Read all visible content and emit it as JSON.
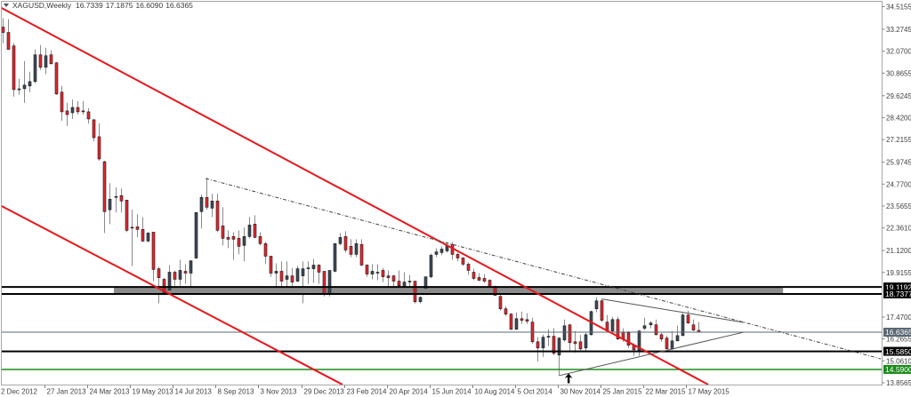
{
  "header": {
    "symbol": "XAGUSD,Weekly",
    "ohlc": {
      "open": "16.7339",
      "high": "17.1875",
      "low": "16.6090",
      "close": "16.6365"
    }
  },
  "icons": {
    "menu": "triangle-down-icon",
    "marker": "up-arrow-icon"
  },
  "colors": {
    "bull": "#3c4a58",
    "bear": "#e3262e",
    "wick": "#8a8a8a",
    "outline": "#1a1a1a",
    "channel": "#e8161b",
    "trend_dashed": "#444444",
    "triangle": "#555555",
    "band": "#8c8c8c",
    "level_black": "#000000",
    "current_price": "#5a6773",
    "support_green": "#1c8c1c",
    "frame": "#a8a8a8",
    "axis_text": "#404040"
  },
  "chart_data": {
    "type": "candlestick",
    "title": "XAGUSD,Weekly",
    "xlabel": "",
    "ylabel": "",
    "ylim": [
      13.8565,
      34.5155
    ],
    "grid": false,
    "last_bar": {
      "open": 16.7339,
      "high": 17.1875,
      "low": 16.609,
      "close": 16.6365
    },
    "y_ticks": [
      "34.5155",
      "33.2745",
      "32.0700",
      "30.8655",
      "29.6245",
      "28.4200",
      "27.2155",
      "25.9745",
      "24.7700",
      "23.5655",
      "22.3610",
      "21.1200",
      "19.9155",
      "17.4700",
      "16.2655",
      "15.0610",
      "13.8565"
    ],
    "x_ticks": [
      {
        "label": "2 Dec 2012",
        "bar": 0
      },
      {
        "label": "27 Jan 2013",
        "bar": 8
      },
      {
        "label": "24 Mar 2013",
        "bar": 16
      },
      {
        "label": "19 May 2013",
        "bar": 24
      },
      {
        "label": "14 Jul 2013",
        "bar": 32
      },
      {
        "label": "8 Sep 2013",
        "bar": 40
      },
      {
        "label": "3 Nov 2013",
        "bar": 48
      },
      {
        "label": "29 Dec 2013",
        "bar": 56
      },
      {
        "label": "23 Feb 2014",
        "bar": 64
      },
      {
        "label": "20 Apr 2014",
        "bar": 72
      },
      {
        "label": "15 Jun 2014",
        "bar": 80
      },
      {
        "label": "10 Aug 2014",
        "bar": 88
      },
      {
        "label": "5 Oct 2014",
        "bar": 96
      },
      {
        "label": "30 Nov 2014",
        "bar": 104
      },
      {
        "label": "25 Jan 2015",
        "bar": 112
      },
      {
        "label": "22 Mar 2015",
        "bar": 120
      },
      {
        "label": "17 May 2015",
        "bar": 128
      }
    ],
    "candles_format": [
      "open",
      "high",
      "low",
      "close"
    ],
    "candles": [
      [
        33.39,
        33.88,
        32.51,
        33.1
      ],
      [
        33.1,
        33.83,
        32.51,
        32.17
      ],
      [
        32.36,
        32.51,
        29.57,
        29.96
      ],
      [
        29.98,
        30.55,
        29.67,
        30.0
      ],
      [
        30.01,
        31.53,
        29.23,
        30.21
      ],
      [
        30.16,
        30.94,
        29.82,
        30.4
      ],
      [
        30.4,
        32.17,
        30.31,
        31.87
      ],
      [
        31.87,
        32.41,
        31.04,
        31.19
      ],
      [
        31.19,
        32.26,
        30.8,
        31.82
      ],
      [
        31.87,
        32.12,
        31.33,
        31.38
      ],
      [
        31.43,
        31.48,
        29.67,
        29.72
      ],
      [
        29.82,
        30.16,
        28.25,
        28.74
      ],
      [
        28.79,
        29.23,
        27.96,
        28.59
      ],
      [
        28.69,
        29.42,
        28.35,
        28.98
      ],
      [
        28.98,
        29.33,
        28.59,
        28.74
      ],
      [
        28.79,
        29.33,
        28.59,
        28.74
      ],
      [
        28.74,
        28.94,
        28.1,
        28.35
      ],
      [
        28.3,
        28.35,
        27.12,
        27.32
      ],
      [
        27.37,
        28.1,
        26.05,
        26.15
      ],
      [
        26.0,
        26.05,
        22.08,
        23.26
      ],
      [
        23.36,
        24.82,
        22.57,
        23.94
      ],
      [
        24.07,
        24.58,
        23.21,
        24.09
      ],
      [
        24.14,
        24.53,
        23.21,
        23.84
      ],
      [
        23.89,
        23.89,
        22.13,
        22.23
      ],
      [
        22.4,
        23.36,
        20.27,
        22.36
      ],
      [
        22.42,
        23.11,
        21.84,
        22.28
      ],
      [
        22.28,
        22.96,
        21.59,
        21.64
      ],
      [
        21.64,
        22.13,
        21.59,
        22.08
      ],
      [
        22.13,
        22.13,
        19.44,
        20.08
      ],
      [
        20.12,
        20.22,
        18.22,
        19.63
      ],
      [
        19.54,
        19.63,
        18.7,
        18.8
      ],
      [
        18.95,
        20.32,
        18.9,
        19.93
      ],
      [
        19.93,
        20.03,
        19.19,
        19.54
      ],
      [
        19.54,
        20.61,
        19.19,
        20.03
      ],
      [
        19.98,
        20.37,
        19.29,
        19.88
      ],
      [
        19.88,
        20.56,
        19.15,
        20.56
      ],
      [
        20.71,
        23.21,
        20.66,
        23.21
      ],
      [
        23.26,
        24.19,
        22.33,
        24.04
      ],
      [
        24.04,
        25.12,
        23.36,
        23.5
      ],
      [
        23.45,
        24.24,
        22.96,
        23.84
      ],
      [
        23.84,
        24.24,
        22.13,
        22.23
      ],
      [
        22.47,
        23.5,
        21.4,
        21.79
      ],
      [
        21.84,
        22.23,
        21.25,
        21.74
      ],
      [
        21.89,
        22.13,
        20.61,
        21.74
      ],
      [
        21.79,
        22.23,
        20.91,
        21.35
      ],
      [
        21.4,
        22.38,
        20.52,
        21.89
      ],
      [
        21.89,
        22.96,
        21.79,
        22.52
      ],
      [
        22.57,
        23.06,
        21.79,
        21.84
      ],
      [
        21.89,
        22.13,
        21.4,
        21.5
      ],
      [
        21.5,
        21.59,
        20.37,
        20.81
      ],
      [
        20.81,
        20.81,
        19.68,
        19.88
      ],
      [
        19.88,
        20.42,
        18.95,
        19.98
      ],
      [
        19.98,
        20.52,
        18.8,
        19.44
      ],
      [
        19.54,
        20.52,
        19.15,
        19.73
      ],
      [
        19.73,
        20.17,
        19.15,
        19.39
      ],
      [
        19.44,
        20.27,
        19.39,
        20.12
      ],
      [
        19.73,
        20.52,
        18.22,
        20.12
      ],
      [
        20.15,
        20.52,
        19.29,
        20.17
      ],
      [
        20.12,
        20.66,
        19.34,
        20.32
      ],
      [
        20.32,
        20.37,
        19.29,
        19.93
      ],
      [
        19.98,
        19.98,
        18.6,
        18.7
      ],
      [
        18.7,
        20.03,
        18.6,
        20.03
      ],
      [
        19.98,
        21.5,
        19.93,
        21.5
      ],
      [
        21.5,
        22.08,
        21.4,
        21.84
      ],
      [
        21.89,
        22.18,
        21.01,
        21.15
      ],
      [
        21.35,
        21.74,
        20.76,
        20.91
      ],
      [
        20.91,
        21.74,
        20.76,
        21.5
      ],
      [
        21.45,
        21.74,
        20.27,
        20.32
      ],
      [
        20.32,
        20.37,
        19.68,
        19.83
      ],
      [
        19.83,
        20.37,
        19.54,
        19.98
      ],
      [
        19.92,
        20.37,
        19.49,
        19.93
      ],
      [
        20.03,
        20.17,
        19.39,
        19.68
      ],
      [
        19.73,
        20.03,
        18.7,
        19.63
      ],
      [
        19.73,
        19.78,
        18.8,
        19.44
      ],
      [
        19.44,
        20.03,
        19.05,
        19.19
      ],
      [
        19.15,
        19.93,
        19.05,
        19.39
      ],
      [
        19.42,
        19.78,
        19.05,
        19.44
      ],
      [
        19.44,
        19.44,
        18.21,
        18.31
      ],
      [
        18.31,
        18.6,
        18.21,
        18.55
      ],
      [
        19.05,
        19.68,
        18.95,
        19.68
      ],
      [
        19.68,
        20.96,
        19.59,
        20.86
      ],
      [
        20.91,
        21.25,
        20.76,
        21.05
      ],
      [
        21.01,
        21.35,
        20.86,
        21.2
      ],
      [
        21.1,
        21.59,
        21.01,
        21.4
      ],
      [
        21.45,
        21.59,
        20.61,
        20.91
      ],
      [
        20.91,
        21.01,
        20.52,
        20.71
      ],
      [
        20.71,
        20.76,
        20.27,
        20.37
      ],
      [
        20.37,
        20.47,
        19.78,
        20.03
      ],
      [
        19.93,
        20.12,
        19.49,
        19.59
      ],
      [
        19.64,
        19.88,
        19.44,
        19.49
      ],
      [
        19.59,
        19.83,
        19.34,
        19.44
      ],
      [
        19.49,
        19.54,
        19.1,
        19.15
      ],
      [
        19.15,
        19.19,
        18.65,
        18.66
      ],
      [
        18.6,
        18.9,
        17.82,
        17.92
      ],
      [
        17.92,
        18.07,
        17.53,
        17.63
      ],
      [
        17.63,
        17.68,
        16.75,
        16.8
      ],
      [
        16.8,
        17.72,
        16.75,
        17.38
      ],
      [
        17.38,
        17.77,
        17.09,
        17.29
      ],
      [
        17.33,
        17.68,
        17.09,
        17.24
      ],
      [
        17.19,
        17.43,
        16.01,
        16.11
      ],
      [
        16.11,
        16.36,
        15.03,
        15.77
      ],
      [
        15.77,
        16.5,
        15.28,
        16.36
      ],
      [
        16.38,
        16.8,
        15.87,
        16.41
      ],
      [
        16.41,
        16.85,
        15.38,
        15.47
      ],
      [
        15.38,
        16.36,
        14.25,
        16.31
      ],
      [
        16.21,
        17.33,
        16.11,
        16.99
      ],
      [
        17.04,
        17.09,
        15.57,
        16.06
      ],
      [
        16.11,
        16.7,
        15.52,
        16.01
      ],
      [
        16.11,
        16.5,
        15.62,
        15.72
      ],
      [
        15.77,
        16.6,
        15.57,
        16.5
      ],
      [
        16.5,
        17.82,
        16.45,
        17.77
      ],
      [
        17.92,
        18.55,
        17.72,
        18.36
      ],
      [
        18.36,
        18.46,
        17.19,
        17.29
      ],
      [
        17.19,
        17.58,
        16.65,
        16.7
      ],
      [
        16.7,
        17.48,
        16.65,
        17.33
      ],
      [
        17.33,
        17.48,
        16.21,
        16.26
      ],
      [
        16.65,
        16.85,
        16.11,
        16.26
      ],
      [
        16.6,
        16.7,
        15.77,
        15.92
      ],
      [
        15.92,
        16.01,
        15.33,
        15.67
      ],
      [
        15.62,
        16.75,
        15.33,
        16.7
      ],
      [
        16.85,
        17.43,
        16.75,
        16.99
      ],
      [
        17.04,
        17.24,
        16.85,
        17.14
      ],
      [
        17.04,
        17.33,
        16.45,
        16.5
      ],
      [
        16.5,
        16.6,
        16.11,
        16.26
      ],
      [
        16.31,
        16.45,
        15.7,
        15.72
      ],
      [
        15.72,
        16.7,
        15.67,
        16.16
      ],
      [
        16.16,
        16.99,
        16.14,
        16.45
      ],
      [
        16.45,
        17.68,
        16.41,
        17.58
      ],
      [
        17.58,
        17.82,
        17.09,
        17.14
      ],
      [
        17.04,
        17.33,
        16.7,
        16.75
      ],
      [
        16.7339,
        17.1875,
        16.609,
        16.6365
      ]
    ],
    "levels": [
      {
        "price": 19.1192,
        "label": "19.1192",
        "style": "level_black",
        "width": 2,
        "label_bg": "level_black"
      },
      {
        "price": 18.7377,
        "label": "18.7377",
        "style": "level_black",
        "width": 2,
        "label_bg": "level_black"
      },
      {
        "price": 16.6365,
        "label": "16.6365",
        "style": "current_price",
        "width": 1,
        "label_bg": "current_price"
      },
      {
        "price": 15.585,
        "label": "15.5850",
        "style": "level_black",
        "width": 2,
        "label_bg": "level_black"
      },
      {
        "price": 14.59,
        "label": "14.5900",
        "style": "support_green",
        "width": 1.5,
        "label_bg": "support_green"
      }
    ],
    "band": {
      "bar_from": 20.75,
      "bar_to": 145.9,
      "price_top": 19.1192,
      "price_bottom": 18.7377
    },
    "trendlines": [
      {
        "name": "upper-channel-line",
        "color": "channel",
        "width": 2,
        "dash": "",
        "from": {
          "bar": -0.55,
          "price": 34.49
        },
        "to": {
          "bar": 131.9,
          "price": 13.76
        }
      },
      {
        "name": "lower-channel-line",
        "color": "channel",
        "width": 2,
        "dash": "",
        "from": {
          "bar": -0.55,
          "price": 23.61
        },
        "to": {
          "bar": 63.5,
          "price": 13.76
        }
      },
      {
        "name": "dashed-resistance-line",
        "color": "trend_dashed",
        "width": 1,
        "dash": "4,2,1,2",
        "from": {
          "bar": 37.9,
          "price": 25.08
        },
        "to": {
          "bar": 164.2,
          "price": 15.17
        }
      },
      {
        "name": "triangle-upper-line",
        "color": "triangle",
        "width": 1,
        "dash": "",
        "from": {
          "bar": 112,
          "price": 18.46
        },
        "to": {
          "bar": 138.6,
          "price": 17.17
        }
      },
      {
        "name": "triangle-lower-line",
        "color": "triangle",
        "width": 1,
        "dash": "",
        "from": {
          "bar": 104,
          "price": 14.25
        },
        "to": {
          "bar": 138.6,
          "price": 16.64
        }
      }
    ],
    "annotations": [
      {
        "type": "arrow-up",
        "bar": 105.8,
        "price": 14.37
      }
    ]
  }
}
